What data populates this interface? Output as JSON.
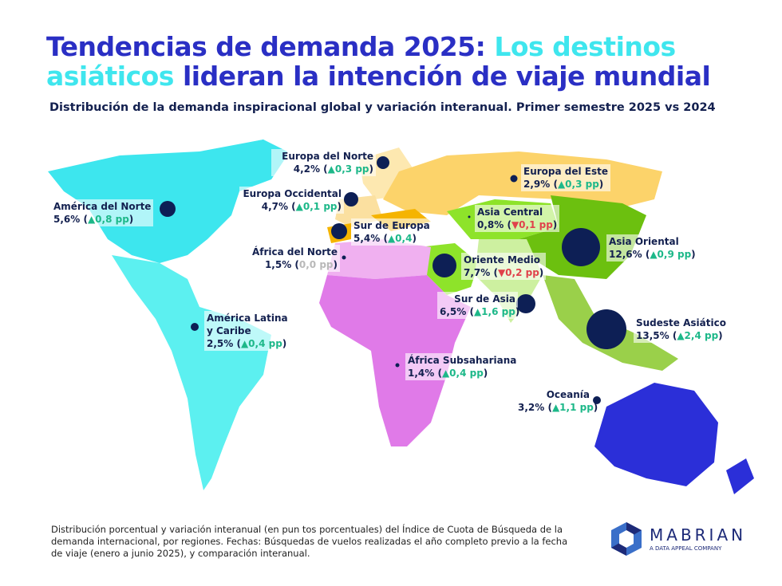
{
  "title": {
    "part1": "Tendencias de demanda 2025: ",
    "highlight1": "Los destinos asiáticos",
    "part2": " lideran la intención de viaje mundial"
  },
  "subtitle": "Distribución de la demanda inspiracional global y variación interanual. Primer semestre 2025 vs 2024",
  "colors": {
    "title": "#2a2fc4",
    "highlight": "#3fe6ee",
    "dot": "#0d1f55",
    "up": "#1db889",
    "down": "#e0414b",
    "neutral": "#b9b9b9"
  },
  "regions": [
    {
      "name": "América del Norte",
      "share": "5,6%",
      "change": "▲0,8 pp",
      "trend": "up",
      "share_pct": 5.6
    },
    {
      "name": "América Latina y Caribe",
      "share": "2,5%",
      "change": "▲0,4 pp",
      "trend": "up",
      "share_pct": 2.5
    },
    {
      "name": "Europa del Norte",
      "share": "4,2%",
      "change": "▲0,3 pp",
      "trend": "up",
      "share_pct": 4.2
    },
    {
      "name": "Europa Occidental",
      "share": "4,7%",
      "change": "▲0,1 pp",
      "trend": "up",
      "share_pct": 4.7
    },
    {
      "name": "Sur de Europa",
      "share": "5,4%",
      "change": "▲0,4",
      "trend": "up",
      "share_pct": 5.4
    },
    {
      "name": "Europa del Este",
      "share": "2,9%",
      "change": "▲0,3 pp",
      "trend": "up",
      "share_pct": 2.9
    },
    {
      "name": "África del Norte",
      "share": "1,5%",
      "change": "0,0 pp",
      "trend": "neutral",
      "share_pct": 1.5
    },
    {
      "name": "África Subsahariana",
      "share": "1,4%",
      "change": "▲0,4 pp",
      "trend": "up",
      "share_pct": 1.4
    },
    {
      "name": "Asia Central",
      "share": "0,8%",
      "change": "▼0,1 pp",
      "trend": "down",
      "share_pct": 0.8
    },
    {
      "name": "Oriente Medio",
      "share": "7,7%",
      "change": "▼0,2 pp",
      "trend": "down",
      "share_pct": 7.7
    },
    {
      "name": "Sur de Asia",
      "share": "6,5%",
      "change": "▲1,6 pp",
      "trend": "up",
      "share_pct": 6.5
    },
    {
      "name": "Asia Oriental",
      "share": "12,6%",
      "change": "▲0,9 pp",
      "trend": "up",
      "share_pct": 12.6
    },
    {
      "name": "Sudeste Asiático",
      "share": "13,5%",
      "change": "▲2,4 pp",
      "trend": "up",
      "share_pct": 13.5
    },
    {
      "name": "Oceanía",
      "share": "3,2%",
      "change": "▲1,1 pp",
      "trend": "up",
      "share_pct": 3.2
    }
  ],
  "note": "Distribución porcentual y variación interanual (en pun tos porcentuales) del Índice de Cuota de Búsqueda de la demanda internacional, por regiones. Fechas: Búsquedas de vuelos realizadas el año completo previo a la fecha de viaje (enero a junio 2025), y comparación interanual.",
  "logo": {
    "name": "MABRIAN",
    "tagline": "A DATA APPEAL COMPANY"
  }
}
